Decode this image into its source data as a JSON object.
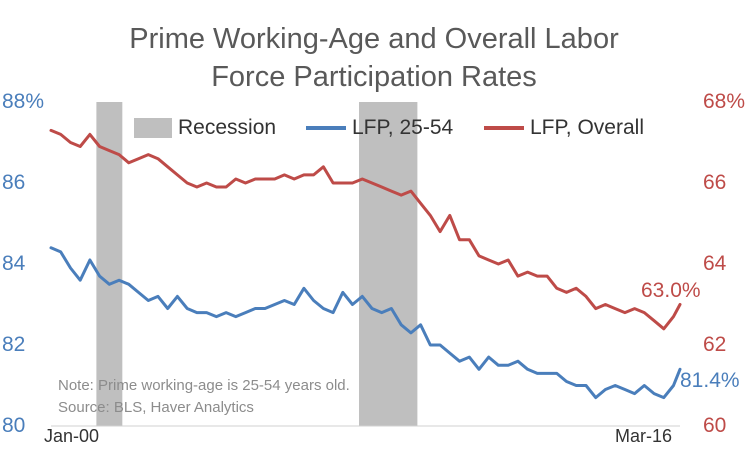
{
  "chart_data": {
    "type": "line",
    "title": "Prime Working-Age and Overall Labor Force Participation Rates",
    "title_lines": [
      "Prime Working-Age and Overall Labor",
      "Force Participation Rates"
    ],
    "x_start_label": "Jan-00",
    "x_end_label": "Mar-16",
    "x_tick_labels": [
      "Jan-00",
      "Mar-16"
    ],
    "y_left": {
      "min": 80,
      "max": 88,
      "ticks": [
        "80",
        "82",
        "84",
        "86",
        "88%"
      ],
      "color": "#4a7ebb"
    },
    "y_right": {
      "min": 60,
      "max": 68,
      "ticks": [
        "60",
        "62",
        "64",
        "66",
        "68%"
      ],
      "color": "#be4b48"
    },
    "legend_position": "top",
    "legend": [
      "Recession",
      "LFP, 25-54",
      "LFP, Overall"
    ],
    "recessions": [
      {
        "name": "Recession",
        "start": "2001-03",
        "end": "2001-11"
      },
      {
        "name": "Recession",
        "start": "2007-12",
        "end": "2009-06"
      }
    ],
    "series": [
      {
        "name": "LFP, 25-54",
        "axis": "left",
        "color": "#4a7ebb",
        "end_label": "81.4%",
        "x": [
          "2000-01",
          "2000-04",
          "2000-07",
          "2000-10",
          "2001-01",
          "2001-04",
          "2001-07",
          "2001-10",
          "2002-01",
          "2002-04",
          "2002-07",
          "2002-10",
          "2003-01",
          "2003-04",
          "2003-07",
          "2003-10",
          "2004-01",
          "2004-04",
          "2004-07",
          "2004-10",
          "2005-01",
          "2005-04",
          "2005-07",
          "2005-10",
          "2006-01",
          "2006-04",
          "2006-07",
          "2006-10",
          "2007-01",
          "2007-04",
          "2007-07",
          "2007-10",
          "2008-01",
          "2008-04",
          "2008-07",
          "2008-10",
          "2009-01",
          "2009-04",
          "2009-07",
          "2009-10",
          "2010-01",
          "2010-04",
          "2010-07",
          "2010-10",
          "2011-01",
          "2011-04",
          "2011-07",
          "2011-10",
          "2012-01",
          "2012-04",
          "2012-07",
          "2012-10",
          "2013-01",
          "2013-04",
          "2013-07",
          "2013-10",
          "2014-01",
          "2014-04",
          "2014-07",
          "2014-10",
          "2015-01",
          "2015-04",
          "2015-07",
          "2015-10",
          "2016-01",
          "2016-03"
        ],
        "values": [
          84.4,
          84.3,
          83.9,
          83.6,
          84.1,
          83.7,
          83.5,
          83.6,
          83.5,
          83.3,
          83.1,
          83.2,
          82.9,
          83.2,
          82.9,
          82.8,
          82.8,
          82.7,
          82.8,
          82.7,
          82.8,
          82.9,
          82.9,
          83.0,
          83.1,
          83.0,
          83.4,
          83.1,
          82.9,
          82.8,
          83.3,
          83.0,
          83.2,
          82.9,
          82.8,
          82.9,
          82.5,
          82.3,
          82.5,
          82.0,
          82.0,
          81.8,
          81.6,
          81.7,
          81.4,
          81.7,
          81.5,
          81.5,
          81.6,
          81.4,
          81.3,
          81.3,
          81.3,
          81.1,
          81.0,
          81.0,
          80.7,
          80.9,
          81.0,
          80.9,
          80.8,
          81.0,
          80.8,
          80.7,
          81.0,
          81.4
        ]
      },
      {
        "name": "LFP, Overall",
        "axis": "right",
        "color": "#be4b48",
        "end_label": "63.0%",
        "x": [
          "2000-01",
          "2000-04",
          "2000-07",
          "2000-10",
          "2001-01",
          "2001-04",
          "2001-07",
          "2001-10",
          "2002-01",
          "2002-04",
          "2002-07",
          "2002-10",
          "2003-01",
          "2003-04",
          "2003-07",
          "2003-10",
          "2004-01",
          "2004-04",
          "2004-07",
          "2004-10",
          "2005-01",
          "2005-04",
          "2005-07",
          "2005-10",
          "2006-01",
          "2006-04",
          "2006-07",
          "2006-10",
          "2007-01",
          "2007-04",
          "2007-07",
          "2007-10",
          "2008-01",
          "2008-04",
          "2008-07",
          "2008-10",
          "2009-01",
          "2009-04",
          "2009-07",
          "2009-10",
          "2010-01",
          "2010-04",
          "2010-07",
          "2010-10",
          "2011-01",
          "2011-04",
          "2011-07",
          "2011-10",
          "2012-01",
          "2012-04",
          "2012-07",
          "2012-10",
          "2013-01",
          "2013-04",
          "2013-07",
          "2013-10",
          "2014-01",
          "2014-04",
          "2014-07",
          "2014-10",
          "2015-01",
          "2015-04",
          "2015-07",
          "2015-10",
          "2016-01",
          "2016-03"
        ],
        "values": [
          67.3,
          67.2,
          67.0,
          66.9,
          67.2,
          66.9,
          66.8,
          66.7,
          66.5,
          66.6,
          66.7,
          66.6,
          66.4,
          66.2,
          66.0,
          65.9,
          66.0,
          65.9,
          65.9,
          66.1,
          66.0,
          66.1,
          66.1,
          66.1,
          66.2,
          66.1,
          66.2,
          66.2,
          66.4,
          66.0,
          66.0,
          66.0,
          66.1,
          66.0,
          65.9,
          65.8,
          65.7,
          65.8,
          65.5,
          65.2,
          64.8,
          65.2,
          64.6,
          64.6,
          64.2,
          64.1,
          64.0,
          64.1,
          63.7,
          63.8,
          63.7,
          63.7,
          63.4,
          63.3,
          63.4,
          63.2,
          62.9,
          63.0,
          62.9,
          62.8,
          62.9,
          62.8,
          62.6,
          62.4,
          62.7,
          63.0
        ]
      }
    ]
  },
  "note_lines": [
    "Note: Prime working-age is 25-54 years old.",
    "Source: BLS, Haver Analytics"
  ]
}
